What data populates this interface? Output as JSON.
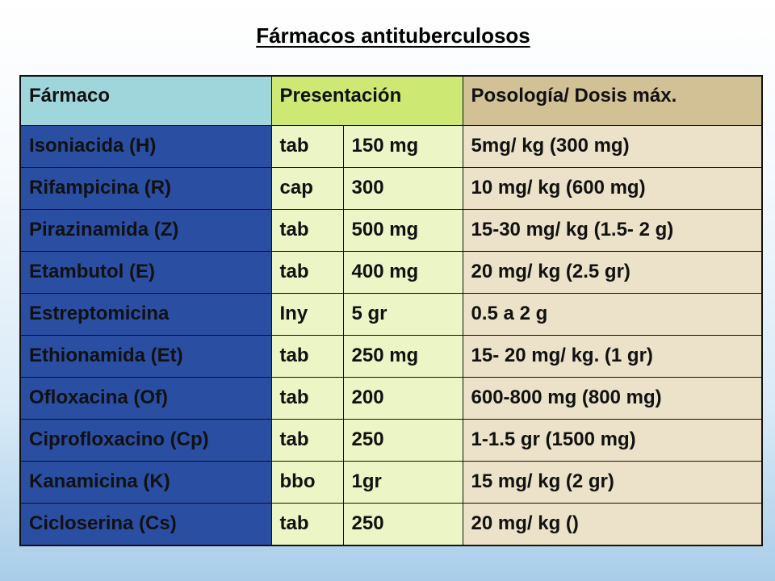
{
  "title": "Fármacos antituberculosos",
  "table": {
    "headers": {
      "farmaco": "Fármaco",
      "presentacion": "Presentación",
      "posologia": "Posología/ Dosis máx."
    },
    "rows": [
      {
        "farmaco": "Isoniacida (H)",
        "forma": "tab",
        "dosis": "150 mg",
        "posologia": "5mg/ kg (300 mg)"
      },
      {
        "farmaco": "Rifampicina (R)",
        "forma": "cap",
        "dosis": "300",
        "posologia": "10 mg/ kg (600 mg)"
      },
      {
        "farmaco": "Pirazinamida (Z)",
        "forma": "tab",
        "dosis": "500 mg",
        "posologia": "15-30 mg/ kg (1.5- 2 g)"
      },
      {
        "farmaco": "Etambutol (E)",
        "forma": "tab",
        "dosis": "400 mg",
        "posologia": "20 mg/ kg (2.5 gr)"
      },
      {
        "farmaco": "Estreptomicina",
        "forma": "Iny",
        "dosis": "5 gr",
        "posologia": "0.5 a 2 g"
      },
      {
        "farmaco": "Ethionamida (Et)",
        "forma": "tab",
        "dosis": "250 mg",
        "posologia": "15- 20 mg/ kg. (1 gr)"
      },
      {
        "farmaco": "Ofloxacina (Of)",
        "forma": "tab",
        "dosis": "200",
        "posologia": "600-800 mg (800 mg)"
      },
      {
        "farmaco": "Ciprofloxacino (Cp)",
        "forma": "tab",
        "dosis": "250",
        "posologia": "1-1.5 gr (1500 mg)"
      },
      {
        "farmaco": "Kanamicina (K)",
        "forma": "bbo",
        "dosis": "1gr",
        "posologia": "15 mg/ kg (2 gr)"
      },
      {
        "farmaco": "Cicloserina (Cs)",
        "forma": "tab",
        "dosis": "250",
        "posologia": "20 mg/ kg ()"
      }
    ]
  },
  "colors": {
    "header_farmaco": "#9fd6db",
    "header_presentacion": "#cde873",
    "header_posologia": "#d2c195",
    "drug_column": "#2a4ea1",
    "presentation_columns": "#ecf5c5",
    "posologia_column": "#ebe2c9"
  }
}
